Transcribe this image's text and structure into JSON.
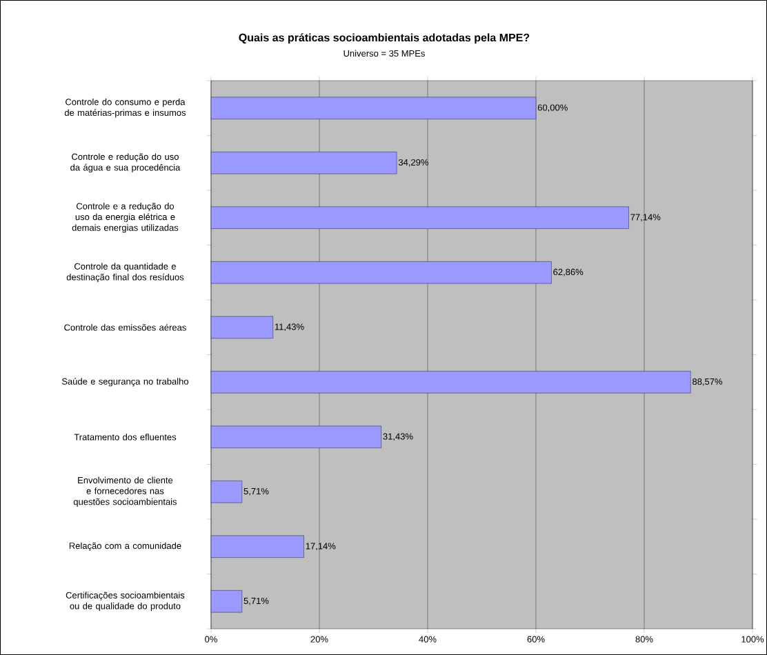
{
  "chart_data": {
    "type": "bar",
    "orientation": "horizontal",
    "title": "Quais as práticas socioambientais adotadas pela MPE?",
    "subtitle": "Universo = 35 MPEs",
    "categories": [
      "Controle do consumo e perda de matérias-primas e insumos",
      "Controle e redução do uso da água e sua procedência",
      "Controle e a redução do uso da energia elétrica e demais energias utilizadas",
      "Controle da quantidade e destinação final dos resíduos",
      "Controle das emissões aéreas",
      "Saúde e segurança no trabalho",
      "Tratamento dos efluentes",
      "Envolvimento de cliente e fornecedores nas questões socioambientais",
      "Relação com a comunidade",
      "Certificações socioambientais ou de qualidade do produto"
    ],
    "values": [
      60.0,
      34.29,
      77.14,
      62.86,
      11.43,
      88.57,
      31.43,
      5.71,
      17.14,
      5.71
    ],
    "value_labels": [
      "60,00%",
      "34,29%",
      "77,14%",
      "62,86%",
      "11,43%",
      "88,57%",
      "31,43%",
      "5,71%",
      "17,14%",
      "5,71%"
    ],
    "color": "#9999ff",
    "xlim": [
      0,
      100
    ],
    "xticks": [
      {
        "value": 0,
        "label": "0%"
      },
      {
        "value": 20,
        "label": "20%"
      },
      {
        "value": 40,
        "label": "40%"
      },
      {
        "value": 60,
        "label": "60%"
      },
      {
        "value": 80,
        "label": "80%"
      },
      {
        "value": 100,
        "label": "100%"
      }
    ],
    "grid": "x"
  }
}
